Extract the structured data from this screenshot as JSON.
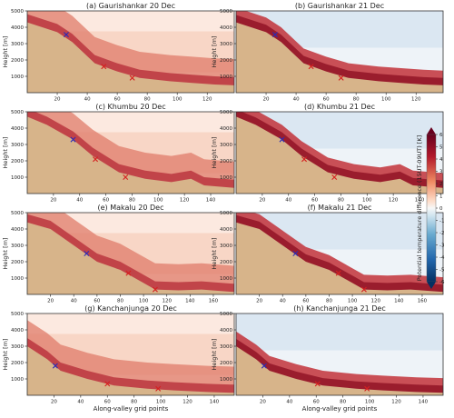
{
  "chart_data": {
    "type": "heatmap",
    "colorbar": {
      "label": "Potential temperature difference (15UT-09UT) [K]",
      "ticks": [
        6,
        5,
        4,
        3,
        2,
        1,
        0,
        -1,
        -2,
        -3,
        -4,
        -5,
        -6
      ],
      "colors": {
        "negative": "#1f4f9c",
        "neutral": "#f7f7f7",
        "positive": "#8b0f20"
      }
    },
    "shared": {
      "ylabel": "Height [m]",
      "xlabel": "Along-valley grid points",
      "yticks": [
        1000,
        2000,
        3000,
        4000,
        5000
      ],
      "ylim": [
        0,
        5000
      ]
    },
    "terrain_color": "#d7b48a",
    "panels": [
      {
        "title": "(a) Gaurishankar 20 Dec",
        "xticks": [
          20,
          40,
          60,
          80,
          100,
          120
        ],
        "xlim": [
          0,
          138
        ],
        "terrain": [
          [
            0,
            4300
          ],
          [
            20,
            3700
          ],
          [
            30,
            3100
          ],
          [
            45,
            1800
          ],
          [
            60,
            1300
          ],
          [
            75,
            900
          ],
          [
            95,
            700
          ],
          [
            110,
            600
          ],
          [
            125,
            500
          ],
          [
            138,
            450
          ]
        ],
        "markers": [
          {
            "color": "blue",
            "x": 26,
            "y": 3550
          },
          {
            "color": "red",
            "x": 51,
            "y": 1600
          },
          {
            "color": "red",
            "x": 70,
            "y": 900
          }
        ]
      },
      {
        "title": "(b) Gaurishankar 21 Dec",
        "xticks": [
          20,
          40,
          60,
          80,
          100,
          120
        ],
        "xlim": [
          0,
          138
        ],
        "terrain": [
          [
            0,
            4300
          ],
          [
            20,
            3700
          ],
          [
            30,
            3100
          ],
          [
            45,
            1800
          ],
          [
            60,
            1300
          ],
          [
            75,
            900
          ],
          [
            95,
            700
          ],
          [
            110,
            600
          ],
          [
            125,
            500
          ],
          [
            138,
            450
          ]
        ],
        "markers": [
          {
            "color": "blue",
            "x": 26,
            "y": 3550
          },
          {
            "color": "red",
            "x": 50,
            "y": 1600
          },
          {
            "color": "red",
            "x": 70,
            "y": 900
          }
        ]
      },
      {
        "title": "(c) Khumbu 20 Dec",
        "xticks": [
          20,
          40,
          60,
          80,
          100,
          120,
          140
        ],
        "xlim": [
          0,
          158
        ],
        "terrain": [
          [
            0,
            4700
          ],
          [
            15,
            4200
          ],
          [
            35,
            3300
          ],
          [
            50,
            2300
          ],
          [
            70,
            1300
          ],
          [
            90,
            900
          ],
          [
            110,
            700
          ],
          [
            125,
            900
          ],
          [
            135,
            500
          ],
          [
            158,
            350
          ]
        ],
        "markers": [
          {
            "color": "blue",
            "x": 35,
            "y": 3300
          },
          {
            "color": "red",
            "x": 52,
            "y": 2100
          },
          {
            "color": "red",
            "x": 75,
            "y": 1000
          }
        ]
      },
      {
        "title": "(d) Khumbu 21 Dec",
        "xticks": [
          20,
          40,
          60,
          80,
          100,
          120,
          140
        ],
        "xlim": [
          0,
          158
        ],
        "terrain": [
          [
            0,
            4700
          ],
          [
            15,
            4200
          ],
          [
            35,
            3300
          ],
          [
            50,
            2300
          ],
          [
            70,
            1300
          ],
          [
            90,
            900
          ],
          [
            110,
            700
          ],
          [
            125,
            900
          ],
          [
            135,
            500
          ],
          [
            158,
            350
          ]
        ],
        "markers": [
          {
            "color": "blue",
            "x": 35,
            "y": 3300
          },
          {
            "color": "red",
            "x": 52,
            "y": 2100
          },
          {
            "color": "red",
            "x": 75,
            "y": 1000
          }
        ]
      },
      {
        "title": "(e) Makalu 20 Dec",
        "xticks": [
          20,
          40,
          60,
          80,
          100,
          120,
          140,
          160
        ],
        "xlim": [
          0,
          178
        ],
        "terrain": [
          [
            0,
            4400
          ],
          [
            20,
            4000
          ],
          [
            40,
            3000
          ],
          [
            60,
            2000
          ],
          [
            80,
            1500
          ],
          [
            100,
            700
          ],
          [
            110,
            300
          ],
          [
            130,
            250
          ],
          [
            150,
            300
          ],
          [
            178,
            150
          ]
        ],
        "markers": [
          {
            "color": "blue",
            "x": 51,
            "y": 2500
          },
          {
            "color": "red",
            "x": 87,
            "y": 1300
          },
          {
            "color": "red",
            "x": 110,
            "y": 300
          }
        ]
      },
      {
        "title": "(f) Makalu 21 Dec",
        "xticks": [
          20,
          40,
          60,
          80,
          100,
          120,
          140,
          160
        ],
        "xlim": [
          0,
          178
        ],
        "terrain": [
          [
            0,
            4400
          ],
          [
            20,
            4000
          ],
          [
            40,
            3000
          ],
          [
            60,
            2000
          ],
          [
            80,
            1500
          ],
          [
            100,
            700
          ],
          [
            110,
            300
          ],
          [
            130,
            250
          ],
          [
            150,
            300
          ],
          [
            178,
            150
          ]
        ],
        "markers": [
          {
            "color": "blue",
            "x": 51,
            "y": 2500
          },
          {
            "color": "red",
            "x": 88,
            "y": 1300
          },
          {
            "color": "red",
            "x": 110,
            "y": 300
          }
        ]
      },
      {
        "title": "(g) Kanchanjunga 20 Dec",
        "xticks": [
          20,
          40,
          60,
          80,
          100,
          120,
          140
        ],
        "xlim": [
          0,
          155
        ],
        "terrain": [
          [
            0,
            3000
          ],
          [
            15,
            2200
          ],
          [
            25,
            1500
          ],
          [
            45,
            1000
          ],
          [
            65,
            600
          ],
          [
            90,
            400
          ],
          [
            110,
            300
          ],
          [
            135,
            200
          ],
          [
            155,
            150
          ]
        ],
        "markers": [
          {
            "color": "blue",
            "x": 21,
            "y": 1800
          },
          {
            "color": "red",
            "x": 60,
            "y": 700
          },
          {
            "color": "red",
            "x": 98,
            "y": 400
          }
        ]
      },
      {
        "title": "(h) Kanchanjunga 21 Dec",
        "xticks": [
          20,
          40,
          60,
          80,
          100,
          120,
          140
        ],
        "xlim": [
          0,
          155
        ],
        "terrain": [
          [
            0,
            3000
          ],
          [
            15,
            2200
          ],
          [
            25,
            1500
          ],
          [
            45,
            1000
          ],
          [
            65,
            600
          ],
          [
            90,
            400
          ],
          [
            110,
            300
          ],
          [
            135,
            200
          ],
          [
            155,
            150
          ]
        ],
        "markers": [
          {
            "color": "blue",
            "x": 21,
            "y": 1800
          },
          {
            "color": "red",
            "x": 61,
            "y": 700
          },
          {
            "color": "red",
            "x": 98,
            "y": 400
          }
        ]
      }
    ]
  }
}
